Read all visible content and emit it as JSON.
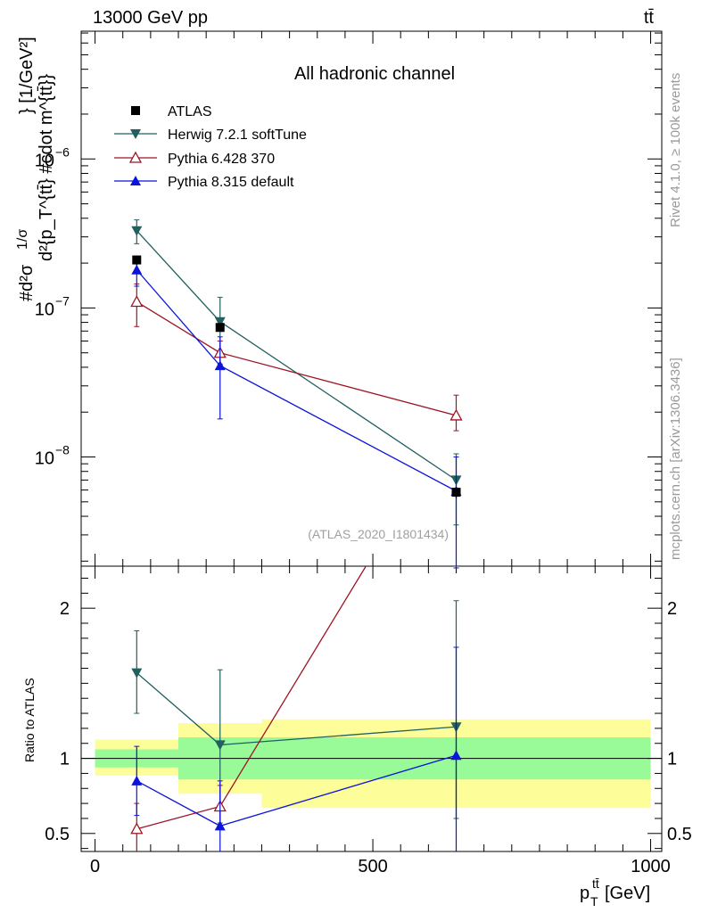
{
  "header": {
    "left": "13000 GeV pp",
    "right": "tt̄"
  },
  "side_labels": {
    "top": "Rivet 4.1.0, ≥ 100k events",
    "bottom": "mcplots.cern.ch [arXiv:1306.3436]"
  },
  "chart_data": {
    "type": "line",
    "title": "All hadronic channel",
    "analysis_ref": "(ATLAS_2020_I1801434)",
    "xlabel": "p_T^{tt̄} [GeV]",
    "xlabel_parts": {
      "main": "p",
      "sub": "T",
      "sup": "tt̄",
      "unit": " [GeV]"
    },
    "ylabel": "#d²σ / #d{p_T^{tt̄}} #cdot m^{tt̄} [1/GeV²]",
    "ylabel_parts": {
      "numerator": "#d²σ",
      "fraction": "1/σ",
      "denominator": "d²{p_T^{tt̄} #cdot m^{tt̄}}",
      "unit": "} [1/GeV²]"
    },
    "xlim": [
      -25,
      1020
    ],
    "xticks": [
      0,
      500,
      1000
    ],
    "xtick_labels": [
      "0",
      "500",
      "1000"
    ],
    "main_panel": {
      "yscale": "log",
      "ylim": [
        1.85e-09,
        7.2e-06
      ],
      "ytick_labels": [
        {
          "value": 1e-08,
          "base": "10",
          "exp": "−8"
        },
        {
          "value": 1e-07,
          "base": "10",
          "exp": "−7"
        },
        {
          "value": 1e-06,
          "base": "10",
          "exp": "−6"
        }
      ]
    },
    "ratio_panel": {
      "ylabel": "Ratio to ATLAS",
      "ylim": [
        0.38,
        2.28
      ],
      "yticks": [
        0.5,
        1,
        2
      ],
      "ytick_labels": [
        "0.5",
        "1",
        "2"
      ],
      "bands": [
        {
          "x0": 0,
          "x1": 150,
          "inner": [
            0.94,
            1.06
          ],
          "outer": [
            0.885,
            1.125
          ]
        },
        {
          "x0": 150,
          "x1": 300,
          "inner": [
            0.86,
            1.14
          ],
          "outer": [
            0.765,
            1.235
          ]
        },
        {
          "x0": 300,
          "x1": 1000,
          "inner": [
            0.86,
            1.14
          ],
          "outer": [
            0.67,
            1.26
          ]
        }
      ]
    },
    "series": [
      {
        "name": "ATLAS",
        "color": "#000000",
        "marker": "square",
        "x": [
          75,
          225,
          650
        ],
        "y": [
          2.1e-07,
          7.4e-08,
          5.8e-09
        ],
        "y_err": [
          [
            1.95e-07,
            2.25e-07
          ],
          [
            7e-08,
            7.8e-08
          ],
          [
            5.3e-09,
            6.3e-09
          ]
        ]
      },
      {
        "name": "Herwig 7.2.1 softTune",
        "color": "#21605f",
        "marker": "triangle-down",
        "x": [
          75,
          225,
          650
        ],
        "y": [
          3.3e-07,
          8.1e-08,
          7e-09
        ],
        "y_err": [
          [
            2.7e-07,
            3.9e-07
          ],
          [
            4.2e-08,
            1.18e-07
          ],
          [
            3.5e-09,
            1.05e-08
          ]
        ],
        "ratio": [
          1.57,
          1.09,
          1.21
        ],
        "ratio_err": [
          [
            1.3,
            1.85
          ],
          [
            0.57,
            1.59
          ],
          [
            0.6,
            2.05
          ]
        ]
      },
      {
        "name": "Pythia 6.428 370",
        "color": "#9c1524",
        "marker": "triangle-open",
        "x": [
          75,
          225,
          650
        ],
        "y": [
          1.1e-07,
          5e-08,
          1.9e-08
        ],
        "y_err": [
          [
            7.5e-08,
            1.45e-07
          ],
          [
            4e-08,
            6e-08
          ],
          [
            1.5e-08,
            2.6e-08
          ]
        ],
        "ratio": [
          0.53,
          0.68,
          3.27
        ],
        "ratio_err": [
          [
            0.36,
            0.7
          ],
          [
            0.55,
            0.82
          ],
          [
            2.6,
            4.5
          ]
        ]
      },
      {
        "name": "Pythia 8.315 default",
        "color": "#0b14d8",
        "marker": "triangle-up",
        "x": [
          75,
          225,
          650
        ],
        "y": [
          1.8e-07,
          4.1e-08,
          5.9e-09
        ],
        "y_err": [
          [
            1.4e-07,
            2.2e-07
          ],
          [
            1.8e-08,
            6.4e-08
          ],
          [
            1.8e-09,
            1e-08
          ]
        ],
        "ratio": [
          0.85,
          0.55,
          1.02
        ],
        "ratio_err": [
          [
            0.62,
            1.08
          ],
          [
            0.25,
            0.85
          ],
          [
            0.3,
            1.74
          ]
        ]
      }
    ]
  }
}
